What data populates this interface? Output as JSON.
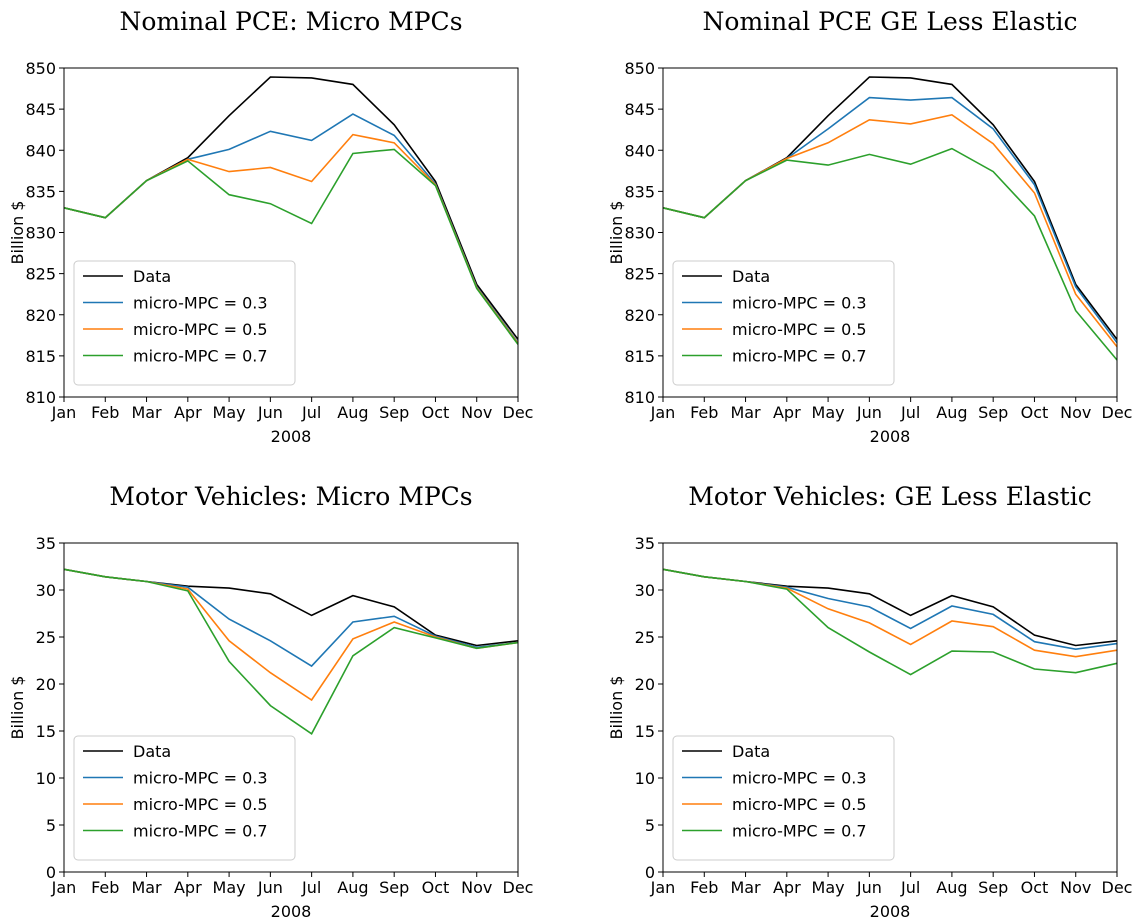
{
  "chart_data": [
    {
      "type": "line",
      "title": "Nominal PCE: Micro MPCs",
      "xlabel": "2008",
      "ylabel": "Billion $",
      "categories": [
        "Jan",
        "Feb",
        "Mar",
        "Apr",
        "May",
        "Jun",
        "Jul",
        "Aug",
        "Sep",
        "Oct",
        "Nov",
        "Dec"
      ],
      "ylim": [
        810,
        850
      ],
      "yticks": [
        810,
        815,
        820,
        825,
        830,
        835,
        840,
        845,
        850
      ],
      "grid": false,
      "legend": "lower left",
      "series": [
        {
          "name": "Data",
          "color": "#000000",
          "values": [
            833.0,
            831.8,
            836.3,
            839.1,
            844.2,
            848.9,
            848.8,
            848.0,
            843.1,
            836.2,
            823.7,
            817.0
          ]
        },
        {
          "name": "micro-MPC = 0.3",
          "color": "#1f77b4",
          "values": [
            833.0,
            831.8,
            836.3,
            838.9,
            840.1,
            842.3,
            841.2,
            844.4,
            841.8,
            835.9,
            823.4,
            816.6
          ]
        },
        {
          "name": "micro-MPC = 0.5",
          "color": "#ff7f0e",
          "values": [
            833.0,
            831.8,
            836.3,
            838.9,
            837.4,
            837.9,
            836.2,
            841.9,
            840.9,
            835.8,
            823.3,
            816.5
          ]
        },
        {
          "name": "micro-MPC = 0.7",
          "color": "#2ca02c",
          "values": [
            833.0,
            831.8,
            836.3,
            838.7,
            834.6,
            833.5,
            831.1,
            839.6,
            840.1,
            835.7,
            823.2,
            816.4
          ]
        }
      ]
    },
    {
      "type": "line",
      "title": "Nominal PCE GE Less Elastic",
      "xlabel": "2008",
      "ylabel": "Billion $",
      "categories": [
        "Jan",
        "Feb",
        "Mar",
        "Apr",
        "May",
        "Jun",
        "Jul",
        "Aug",
        "Sep",
        "Oct",
        "Nov",
        "Dec"
      ],
      "ylim": [
        810,
        850
      ],
      "yticks": [
        810,
        815,
        820,
        825,
        830,
        835,
        840,
        845,
        850
      ],
      "grid": false,
      "legend": "lower left",
      "series": [
        {
          "name": "Data",
          "color": "#000000",
          "values": [
            833.0,
            831.8,
            836.3,
            839.1,
            844.2,
            848.9,
            848.8,
            848.0,
            843.1,
            836.2,
            823.7,
            817.0
          ]
        },
        {
          "name": "micro-MPC = 0.3",
          "color": "#1f77b4",
          "values": [
            833.0,
            831.8,
            836.3,
            839.0,
            842.6,
            846.4,
            846.1,
            846.4,
            842.6,
            835.8,
            823.4,
            816.6
          ]
        },
        {
          "name": "micro-MPC = 0.5",
          "color": "#ff7f0e",
          "values": [
            833.0,
            831.8,
            836.3,
            839.0,
            840.9,
            843.7,
            843.2,
            844.3,
            840.8,
            834.8,
            822.5,
            816.1
          ]
        },
        {
          "name": "micro-MPC = 0.7",
          "color": "#2ca02c",
          "values": [
            833.0,
            831.8,
            836.3,
            838.8,
            838.2,
            839.5,
            838.3,
            840.2,
            837.4,
            832.0,
            820.5,
            814.5
          ]
        }
      ]
    },
    {
      "type": "line",
      "title": "Motor Vehicles: Micro MPCs",
      "xlabel": "2008",
      "ylabel": "Billion $",
      "categories": [
        "Jan",
        "Feb",
        "Mar",
        "Apr",
        "May",
        "Jun",
        "Jul",
        "Aug",
        "Sep",
        "Oct",
        "Nov",
        "Dec"
      ],
      "ylim": [
        0,
        35
      ],
      "yticks": [
        0,
        5,
        10,
        15,
        20,
        25,
        30,
        35
      ],
      "grid": false,
      "legend": "lower left",
      "series": [
        {
          "name": "Data",
          "color": "#000000",
          "values": [
            32.2,
            31.4,
            30.9,
            30.4,
            30.2,
            29.6,
            27.3,
            29.4,
            28.2,
            25.2,
            24.1,
            24.6
          ]
        },
        {
          "name": "micro-MPC = 0.3",
          "color": "#1f77b4",
          "values": [
            32.2,
            31.4,
            30.9,
            30.3,
            26.9,
            24.6,
            21.9,
            26.6,
            27.2,
            25.1,
            23.9,
            24.4
          ]
        },
        {
          "name": "micro-MPC = 0.5",
          "color": "#ff7f0e",
          "values": [
            32.2,
            31.4,
            30.9,
            30.1,
            24.6,
            21.2,
            18.3,
            24.8,
            26.6,
            25.0,
            23.8,
            24.4
          ]
        },
        {
          "name": "micro-MPC = 0.7",
          "color": "#2ca02c",
          "values": [
            32.2,
            31.4,
            30.9,
            29.9,
            22.4,
            17.7,
            14.7,
            23.0,
            26.0,
            24.9,
            23.8,
            24.4
          ]
        }
      ]
    },
    {
      "type": "line",
      "title": "Motor Vehicles: GE Less Elastic",
      "xlabel": "2008",
      "ylabel": "Billion $",
      "categories": [
        "Jan",
        "Feb",
        "Mar",
        "Apr",
        "May",
        "Jun",
        "Jul",
        "Aug",
        "Sep",
        "Oct",
        "Nov",
        "Dec"
      ],
      "ylim": [
        0,
        35
      ],
      "yticks": [
        0,
        5,
        10,
        15,
        20,
        25,
        30,
        35
      ],
      "grid": false,
      "legend": "lower left",
      "series": [
        {
          "name": "Data",
          "color": "#000000",
          "values": [
            32.2,
            31.4,
            30.9,
            30.4,
            30.2,
            29.6,
            27.3,
            29.4,
            28.2,
            25.2,
            24.1,
            24.6
          ]
        },
        {
          "name": "micro-MPC = 0.3",
          "color": "#1f77b4",
          "values": [
            32.2,
            31.4,
            30.9,
            30.3,
            29.1,
            28.2,
            25.9,
            28.3,
            27.4,
            24.5,
            23.7,
            24.3
          ]
        },
        {
          "name": "micro-MPC = 0.5",
          "color": "#ff7f0e",
          "values": [
            32.2,
            31.4,
            30.9,
            30.2,
            28.0,
            26.5,
            24.2,
            26.7,
            26.1,
            23.6,
            22.9,
            23.6
          ]
        },
        {
          "name": "micro-MPC = 0.7",
          "color": "#2ca02c",
          "values": [
            32.2,
            31.4,
            30.9,
            30.1,
            26.0,
            23.4,
            21.0,
            23.5,
            23.4,
            21.6,
            21.2,
            22.2
          ]
        }
      ]
    }
  ]
}
